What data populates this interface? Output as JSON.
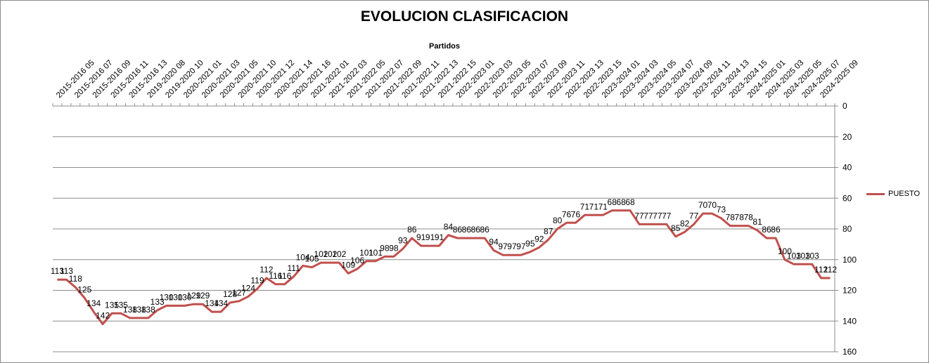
{
  "chart_data": {
    "type": "line",
    "title": "EVOLUCION CLASIFICACION",
    "xlabel": "Partidos",
    "ylabel": "",
    "ylim": [
      0,
      160
    ],
    "y_reversed": true,
    "y_ticks": [
      0,
      20,
      40,
      60,
      80,
      100,
      120,
      140,
      160
    ],
    "y_axis_side": "right",
    "grid": true,
    "legend_position": "right",
    "x_tick_labels": [
      "2015-2016 05",
      "2015-2016 07",
      "2015-2016 09",
      "2015-2016 11",
      "2015-2016 13",
      "2019-2020 08",
      "2019-2020 10",
      "2020-2021 01",
      "2020-2021 03",
      "2020-2021 05",
      "2020-2021 10",
      "2020-2021 12",
      "2020-2021 14",
      "2020-2021 16",
      "2021-2022 01",
      "2021-2022 03",
      "2021-2022 05",
      "2021-2022 07",
      "2021-2022 09",
      "2021-2022 11",
      "2021-2022 13",
      "2021-2022 15",
      "2022-2023 01",
      "2022-2023 03",
      "2022-2023 05",
      "2022-2023 07",
      "2022-2023 09",
      "2022-2023 11",
      "2022-2023 13",
      "2022-2023 15",
      "2023-2024 01",
      "2023-2024 03",
      "2023-2024 05",
      "2023-2024 07",
      "2023-2024 09",
      "2023-2024 11",
      "2023-2024 13",
      "2023-2024 15",
      "2024-2025 01",
      "2024-2025 03",
      "2024-2025 05",
      "2024-2025 07",
      "2024-2025 09"
    ],
    "series": [
      {
        "name": "PUESTO",
        "color": "#c0504d",
        "values": [
          113,
          113,
          118,
          125,
          134,
          142,
          135,
          135,
          138,
          138,
          138,
          133,
          130,
          130,
          130,
          129,
          129,
          134,
          134,
          128,
          127,
          124,
          119,
          112,
          116,
          116,
          111,
          104,
          105,
          102,
          102,
          102,
          109,
          106,
          101,
          101,
          98,
          98,
          93,
          86,
          91,
          91,
          91,
          84,
          86,
          86,
          86,
          86,
          94,
          97,
          97,
          97,
          95,
          92,
          87,
          80,
          76,
          76,
          71,
          71,
          71,
          68,
          68,
          68,
          77,
          77,
          77,
          77,
          85,
          82,
          77,
          70,
          70,
          73,
          78,
          78,
          78,
          81,
          86,
          86,
          100,
          103,
          103,
          103,
          112,
          112
        ]
      }
    ]
  }
}
